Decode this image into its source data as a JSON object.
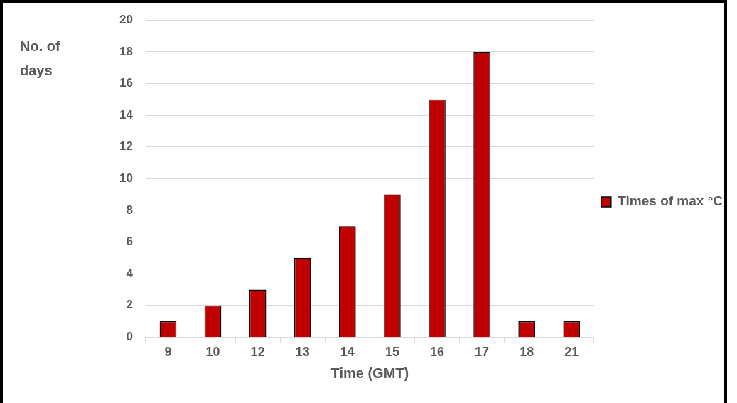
{
  "chart_data": {
    "type": "bar",
    "xlabel": "Time (GMT)",
    "ylabel": "No. of days",
    "categories": [
      "9",
      "10",
      "12",
      "13",
      "14",
      "15",
      "16",
      "17",
      "18",
      "21"
    ],
    "series": [
      {
        "name": "Times of max °C",
        "color": "#c00000",
        "values": [
          1,
          2,
          3,
          5,
          7,
          9,
          15,
          18,
          1,
          1
        ]
      }
    ],
    "ylim": [
      0,
      20
    ],
    "yticks": [
      0,
      2,
      4,
      6,
      8,
      10,
      12,
      14,
      16,
      18,
      20
    ],
    "grid": "y",
    "legend": "right"
  }
}
